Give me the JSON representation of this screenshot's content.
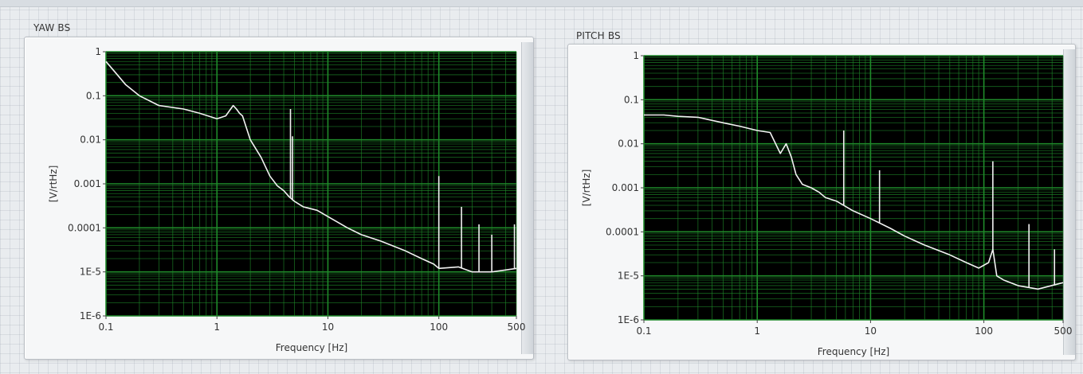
{
  "graphs": [
    {
      "id": "yaw",
      "title": "YAW BS",
      "xlabel": "Frequency [Hz]",
      "ylabel": "[V/rtHz]",
      "x_ticks": [
        "0.1",
        "1",
        "10",
        "100",
        "500"
      ],
      "y_ticks": [
        "1",
        "0.1",
        "0.01",
        "0.001",
        "0.0001",
        "1E-5",
        "1E-6"
      ]
    },
    {
      "id": "pitch",
      "title": "PITCH BS",
      "xlabel": "Frequency [Hz]",
      "ylabel": "[V/rtHz]",
      "x_ticks": [
        "0.1",
        "1",
        "10",
        "100",
        "500"
      ],
      "y_ticks": [
        "1",
        "0.1",
        "0.01",
        "0.001",
        "0.0001",
        "1E-5",
        "1E-6"
      ]
    }
  ],
  "chart_data": [
    {
      "type": "line",
      "title": "YAW BS",
      "xlabel": "Frequency [Hz]",
      "ylabel": "[V/rtHz]",
      "x_scale": "log",
      "y_scale": "log",
      "xlim": [
        0.1,
        500
      ],
      "ylim": [
        1e-06,
        1
      ],
      "grid": true,
      "colors": {
        "plot_bg": "#000000",
        "grid": "#1f8a2a",
        "trace": "#f2f2f2"
      },
      "series": [
        {
          "x": [
            0.1,
            0.12,
            0.15,
            0.2,
            0.3,
            0.5,
            0.7,
            1.0,
            1.2,
            1.4,
            1.5,
            1.6,
            1.7,
            2.0,
            2.5,
            3.0,
            3.5,
            4.0,
            4.5,
            5.0,
            6.0,
            8.0,
            10,
            15,
            20,
            30,
            50,
            70,
            90,
            100,
            150,
            200,
            300,
            500
          ],
          "y": [
            0.6,
            0.35,
            0.18,
            0.1,
            0.06,
            0.05,
            0.04,
            0.03,
            0.035,
            0.06,
            0.05,
            0.04,
            0.035,
            0.01,
            0.004,
            0.0015,
            0.0009,
            0.0007,
            0.0005,
            0.0004,
            0.0003,
            0.00025,
            0.00018,
            0.0001,
            7e-05,
            5e-05,
            3e-05,
            2e-05,
            1.5e-05,
            1.2e-05,
            1.3e-05,
            1e-05,
            1e-05,
            1.2e-05
          ]
        }
      ],
      "spikes": [
        {
          "x": 4.6,
          "y": 0.05
        },
        {
          "x": 4.8,
          "y": 0.012
        },
        {
          "x": 100,
          "y": 0.0015
        },
        {
          "x": 160,
          "y": 0.0003
        },
        {
          "x": 230,
          "y": 0.00012
        },
        {
          "x": 300,
          "y": 7e-05
        },
        {
          "x": 480,
          "y": 0.00012
        }
      ]
    },
    {
      "type": "line",
      "title": "PITCH BS",
      "xlabel": "Frequency [Hz]",
      "ylabel": "[V/rtHz]",
      "x_scale": "log",
      "y_scale": "log",
      "xlim": [
        0.1,
        500
      ],
      "ylim": [
        1e-06,
        1
      ],
      "grid": true,
      "colors": {
        "plot_bg": "#000000",
        "grid": "#1f8a2a",
        "trace": "#f2f2f2"
      },
      "series": [
        {
          "x": [
            0.1,
            0.15,
            0.2,
            0.3,
            0.5,
            0.7,
            1.0,
            1.3,
            1.6,
            1.8,
            2.0,
            2.2,
            2.5,
            3.0,
            3.5,
            4.0,
            5.0,
            7.0,
            10,
            15,
            20,
            30,
            50,
            70,
            90,
            110,
            120,
            130,
            150,
            200,
            300,
            500
          ],
          "y": [
            0.045,
            0.045,
            0.042,
            0.04,
            0.03,
            0.025,
            0.02,
            0.018,
            0.006,
            0.01,
            0.005,
            0.002,
            0.0012,
            0.001,
            0.0008,
            0.0006,
            0.0005,
            0.0003,
            0.0002,
            0.00012,
            8e-05,
            5e-05,
            3e-05,
            2e-05,
            1.5e-05,
            2e-05,
            4e-05,
            1e-05,
            8e-06,
            6e-06,
            5e-06,
            7e-06
          ]
        }
      ],
      "spikes": [
        {
          "x": 5.8,
          "y": 0.02
        },
        {
          "x": 12,
          "y": 0.0025
        },
        {
          "x": 120,
          "y": 0.004
        },
        {
          "x": 250,
          "y": 0.00015
        },
        {
          "x": 420,
          "y": 4e-05
        }
      ]
    }
  ]
}
